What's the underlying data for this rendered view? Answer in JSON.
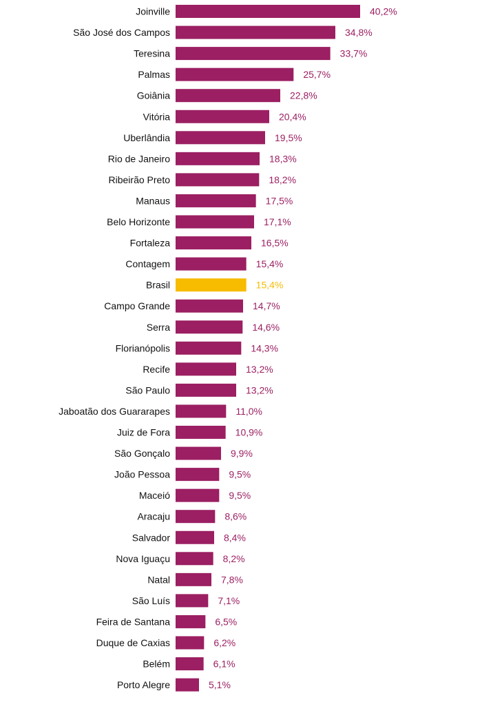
{
  "colors": {
    "bar": "#9B1F62",
    "highlight": "#F7BB00",
    "label_text": "#111111"
  },
  "chart_data": {
    "type": "bar",
    "orientation": "horizontal",
    "categories": [
      "Joinville",
      "São José dos Campos",
      "Teresina",
      "Palmas",
      "Goiânia",
      "Vitória",
      "Uberlândia",
      "Rio de Janeiro",
      "Ribeirão Preto",
      "Manaus",
      "Belo Horizonte",
      "Fortaleza",
      "Contagem",
      "Brasil",
      "Campo Grande",
      "Serra",
      "Florianópolis",
      "Recife",
      "São Paulo",
      "Jaboatão dos Guararapes",
      "Juiz de Fora",
      "São Gonçalo",
      "João Pessoa",
      "Maceió",
      "Aracaju",
      "Salvador",
      "Nova Iguaçu",
      "Natal",
      "São Luís",
      "Feira de Santana",
      "Duque de Caxias",
      "Belém",
      "Porto Alegre"
    ],
    "values": [
      40.2,
      34.8,
      33.7,
      25.7,
      22.8,
      20.4,
      19.5,
      18.3,
      18.2,
      17.5,
      17.1,
      16.5,
      15.4,
      15.4,
      14.7,
      14.6,
      14.3,
      13.2,
      13.2,
      11.0,
      10.9,
      9.9,
      9.5,
      9.5,
      8.6,
      8.4,
      8.2,
      7.8,
      7.1,
      6.5,
      6.2,
      6.1,
      5.1
    ],
    "value_labels": [
      "40,2%",
      "34,8%",
      "33,7%",
      "25,7%",
      "22,8%",
      "20,4%",
      "19,5%",
      "18,3%",
      "18,2%",
      "17,5%",
      "17,1%",
      "16,5%",
      "15,4%",
      "15,4%",
      "14,7%",
      "14,6%",
      "14,3%",
      "13,2%",
      "13,2%",
      "11,0%",
      "10,9%",
      "9,9%",
      "9,5%",
      "9,5%",
      "8,6%",
      "8,4%",
      "8,2%",
      "7,8%",
      "7,1%",
      "6,5%",
      "6,2%",
      "6,1%",
      "5,1%"
    ],
    "highlighted_category": "Brasil",
    "unit": "%",
    "xlim": [
      0,
      40.2
    ],
    "grid": false,
    "legend": "none"
  }
}
